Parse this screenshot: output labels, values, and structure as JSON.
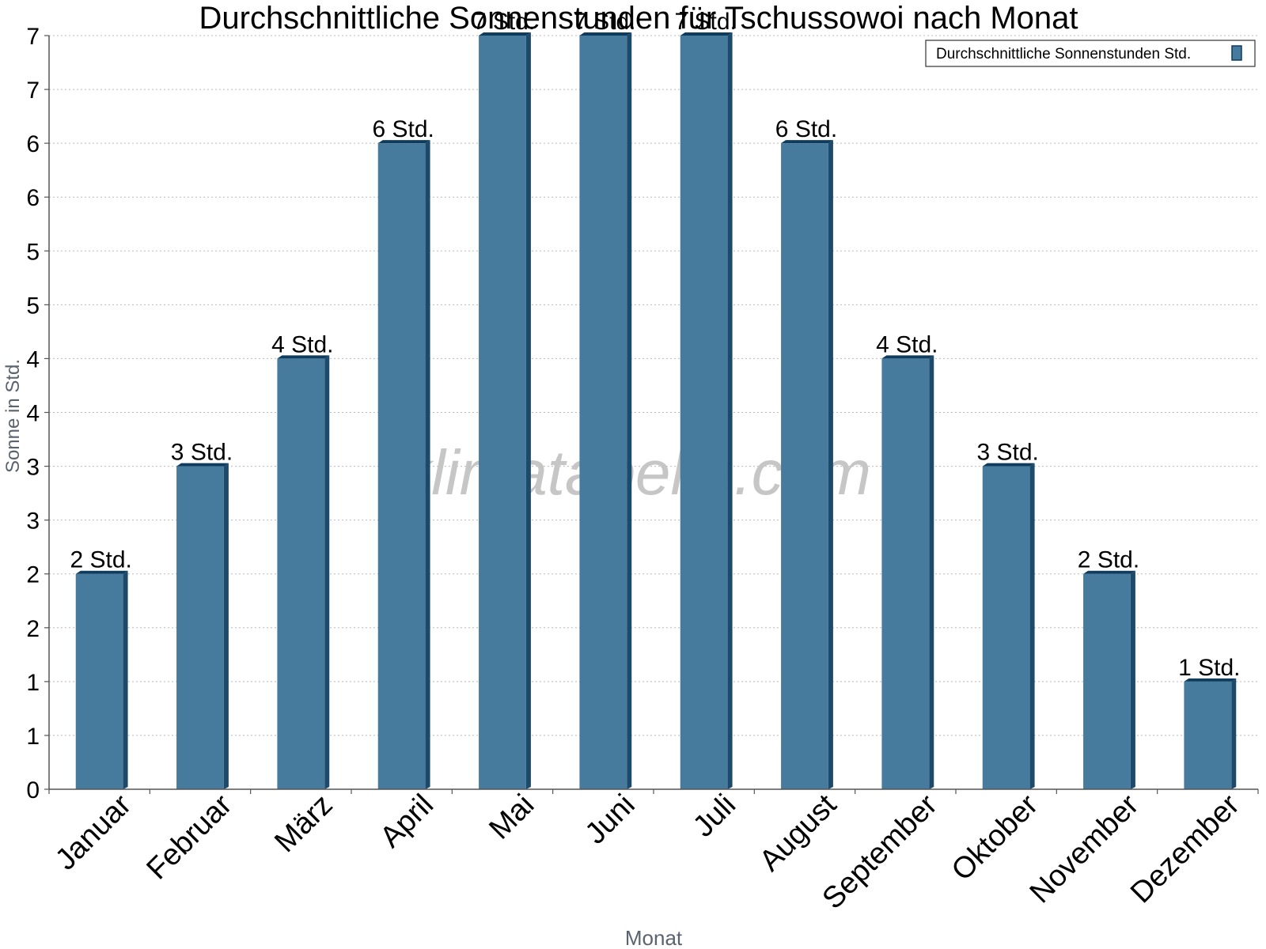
{
  "chart_data": {
    "type": "bar",
    "title": "Durchschnittliche Sonnenstunden für Tschussowoi nach Monat",
    "xlabel": "Monat",
    "ylabel": "Sonne in Std.",
    "categories": [
      "Januar",
      "Februar",
      "März",
      "April",
      "Mai",
      "Juni",
      "Juli",
      "August",
      "September",
      "Oktober",
      "November",
      "Dezember"
    ],
    "series": [
      {
        "name": "Durchschnittliche Sonnenstunden Std.",
        "values": [
          2,
          3,
          4,
          6,
          7,
          7,
          7,
          6,
          4,
          3,
          2,
          1
        ],
        "labels": [
          "2 Std.",
          "3 Std.",
          "4 Std.",
          "6 Std.",
          "7 Std.",
          "7 Std.",
          "7 Std.",
          "6 Std.",
          "4 Std.",
          "3 Std.",
          "2 Std.",
          "1 Std."
        ]
      }
    ],
    "ylim": [
      0,
      7
    ],
    "ytick_values": [
      0,
      0.5,
      1,
      1.5,
      2,
      2.5,
      3,
      3.5,
      4,
      4.5,
      5,
      5.5,
      6,
      6.5,
      7
    ],
    "ytick_labels": [
      "0",
      "1",
      "1",
      "2",
      "2",
      "3",
      "3",
      "4",
      "4",
      "5",
      "5",
      "6",
      "6",
      "7",
      "7"
    ],
    "grid": true,
    "legend_position": "top-right",
    "watermark": "klimatabelle.com",
    "colors": {
      "bar": "#467b9e",
      "bar_side": "#1d4a6b",
      "bar_top": "#0f3b5c",
      "grid": "#bbbbbb",
      "axis": "#555555",
      "axis_title": "#5a6370"
    }
  }
}
